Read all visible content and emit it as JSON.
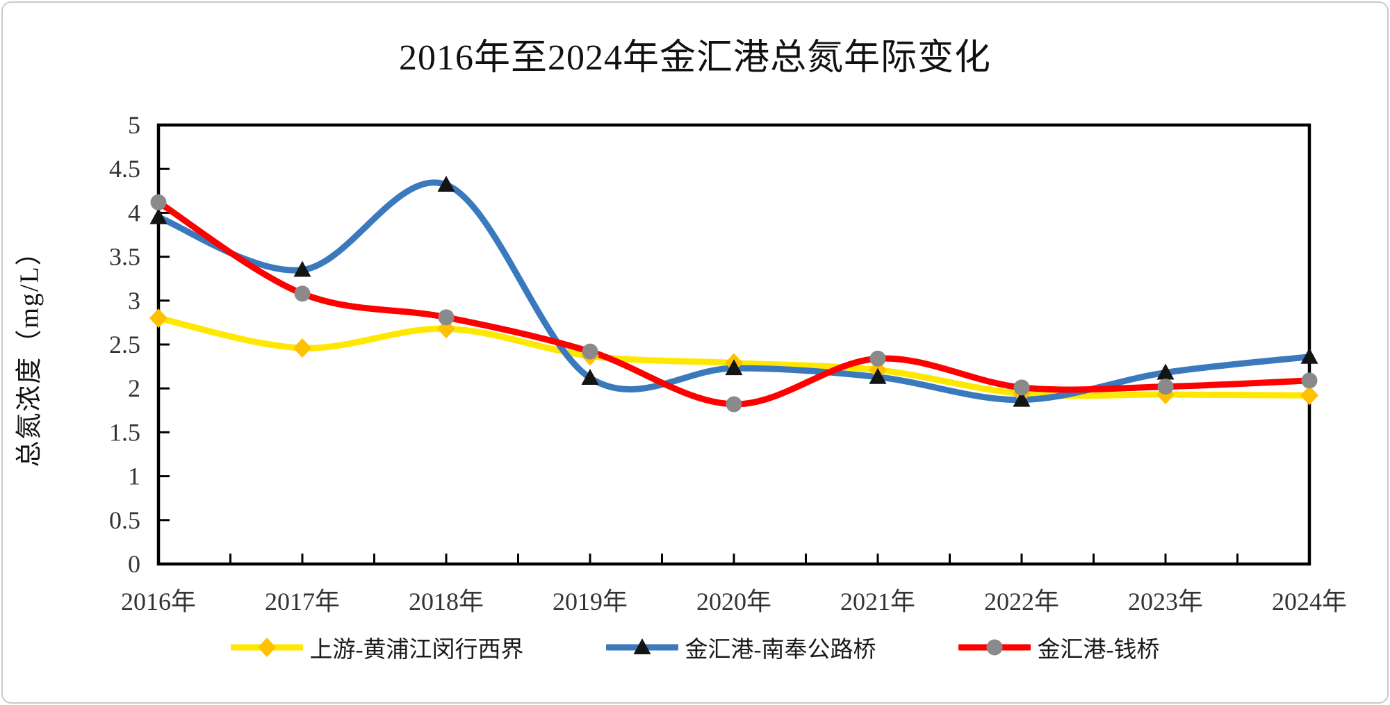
{
  "chart_data": {
    "type": "line",
    "title": "2016年至2024年金汇港总氮年际变化",
    "ylabel": "总氮浓度（mg/L）",
    "xlabel": "",
    "categories": [
      "2016年",
      "2017年",
      "2018年",
      "2019年",
      "2020年",
      "2021年",
      "2022年",
      "2023年",
      "2024年"
    ],
    "ylim": [
      0,
      5
    ],
    "ytick_step": 0.5,
    "ytick_labels_top_to_bottom": [
      "5",
      "4.5",
      "4",
      "3.5",
      "3",
      "2.5",
      "2",
      "1.5",
      "1",
      "0.5",
      "0"
    ],
    "grid": false,
    "smooth_lines": true,
    "legend_position": "bottom",
    "axis_color": "#000000",
    "tick_label_color": "#333333",
    "series": [
      {
        "name": "上游-黄浦江闵行西界",
        "marker": "diamond",
        "line_color": "#FFE800",
        "marker_color": "#FFC000",
        "values": [
          2.8,
          2.46,
          2.68,
          2.37,
          2.29,
          2.21,
          1.94,
          1.93,
          1.92
        ]
      },
      {
        "name": "金汇港-南奉公路桥",
        "marker": "triangle",
        "line_color": "#3A79BE",
        "marker_color": "#141414",
        "values": [
          3.95,
          3.35,
          4.32,
          2.12,
          2.23,
          2.13,
          1.87,
          2.18,
          2.36
        ]
      },
      {
        "name": "金汇港-钱桥",
        "marker": "circle",
        "line_color": "#FF0000",
        "marker_color": "#8A8A8A",
        "values": [
          4.12,
          3.08,
          2.81,
          2.42,
          1.82,
          2.34,
          2.01,
          2.02,
          2.09
        ]
      }
    ]
  }
}
